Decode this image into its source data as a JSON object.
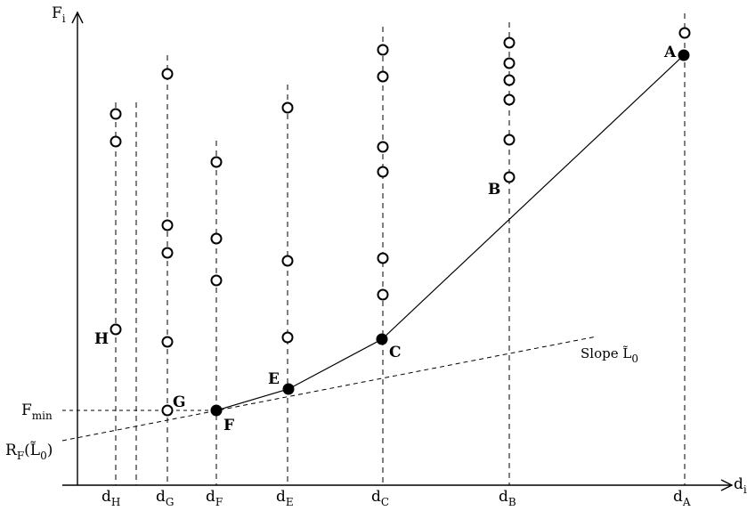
{
  "axes": {
    "y_label": {
      "main": "F",
      "sub": "i"
    },
    "x_label": {
      "main": "d",
      "sub": "i"
    }
  },
  "columns": [
    {
      "id": "H",
      "tick": {
        "main": "d",
        "sub": "H"
      }
    },
    {
      "id": "G",
      "tick": {
        "main": "d",
        "sub": "G"
      }
    },
    {
      "id": "F",
      "tick": {
        "main": "d",
        "sub": "F"
      }
    },
    {
      "id": "E",
      "tick": {
        "main": "d",
        "sub": "E"
      }
    },
    {
      "id": "C",
      "tick": {
        "main": "d",
        "sub": "C"
      }
    },
    {
      "id": "B",
      "tick": {
        "main": "d",
        "sub": "B"
      }
    },
    {
      "id": "A",
      "tick": {
        "main": "d",
        "sub": "A"
      }
    }
  ],
  "point_labels": {
    "A": "A",
    "B": "B",
    "C": "C",
    "E": "E",
    "F": "F",
    "G": "G",
    "H": "H"
  },
  "f_min": {
    "main": "F",
    "sub": "min"
  },
  "intercept": {
    "main": "R",
    "sub": "F",
    "arg_open": "(",
    "arg": "L̃",
    "arg_sub": "0",
    "arg_close": ")"
  },
  "slope_label": {
    "main": "Slope L̃",
    "sub": "0"
  },
  "colors": {
    "ink": "#000000",
    "background": "#ffffff"
  }
}
